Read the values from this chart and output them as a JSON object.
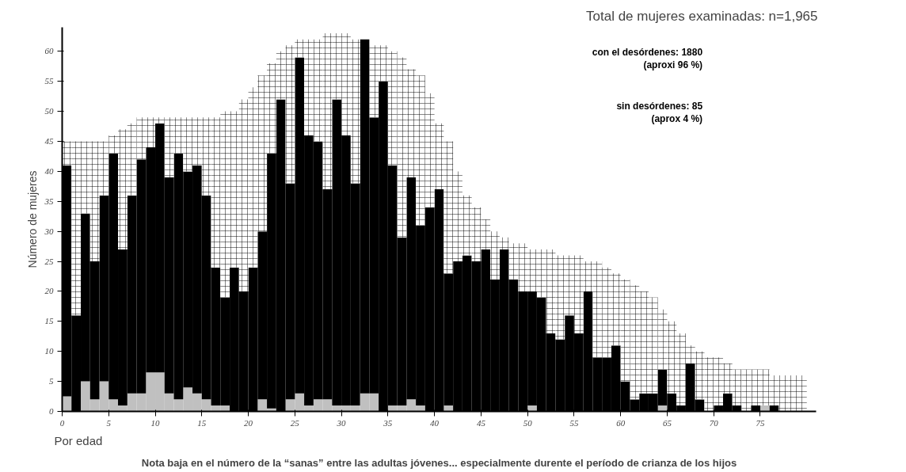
{
  "chart_data": {
    "type": "bar",
    "stacked": true,
    "title": "Total de mujeres examinadas: n=1,965",
    "xlabel": "Por edad",
    "ylabel": "Número de mujeres",
    "x": [
      0.5,
      1.5,
      2.5,
      3.5,
      4.5,
      5.5,
      6.5,
      7.5,
      8.5,
      9.5,
      10.5,
      11.5,
      12.5,
      13.5,
      14.5,
      15.5,
      16.5,
      17.5,
      18.5,
      19.5,
      20.5,
      21.5,
      22.5,
      23.5,
      24.5,
      25.5,
      26.5,
      27.5,
      28.5,
      29.5,
      30.5,
      31.5,
      32.5,
      33.5,
      34.5,
      35.5,
      36.5,
      37.5,
      38.5,
      39.5,
      40.5,
      41.5,
      42.5,
      43.5,
      44.5,
      45.5,
      46.5,
      47.5,
      48.5,
      49.5,
      50.5,
      51.5,
      52.5,
      53.5,
      54.5,
      55.5,
      56.5,
      57.5,
      58.5,
      59.5,
      60.5,
      61.5,
      62.5,
      63.5,
      64.5,
      65.5,
      66.5,
      67.5,
      68.5,
      69.5,
      70.5,
      71.5,
      72.5,
      73.5,
      74.5,
      75.5,
      76.5,
      77.5,
      78.5,
      79.5
    ],
    "xlim": [
      0,
      81
    ],
    "xticks": [
      0,
      5,
      10,
      15,
      20,
      25,
      30,
      35,
      40,
      45,
      50,
      55,
      60,
      65,
      70,
      75
    ],
    "ylim": [
      0,
      64
    ],
    "yticks": [
      0,
      5,
      10,
      15,
      20,
      25,
      30,
      35,
      40,
      45,
      50,
      55,
      60
    ],
    "series": [
      {
        "color": "#c0c0c0",
        "values": [
          2.5,
          0,
          5,
          2,
          5,
          2,
          1,
          3,
          3,
          6.5,
          6.5,
          3,
          2,
          4,
          3,
          2,
          1,
          1,
          0,
          0,
          0,
          2,
          0.5,
          0,
          2,
          3,
          1,
          2,
          2,
          1,
          1,
          1,
          3,
          3,
          0,
          1,
          1,
          2,
          1,
          0,
          0,
          1,
          0,
          0,
          0,
          0,
          0,
          0,
          0,
          0,
          1,
          0,
          0,
          0,
          0,
          0,
          0,
          0,
          0,
          0,
          0,
          0,
          0,
          0,
          1,
          0,
          0,
          0,
          0,
          0,
          0,
          0,
          0,
          0,
          0,
          1,
          0,
          0,
          0,
          0
        ]
      },
      {
        "color": "#000000",
        "values": [
          38.5,
          16,
          28,
          23,
          31,
          41,
          26,
          33,
          39,
          37.5,
          41.5,
          36,
          41,
          36,
          38,
          34,
          23,
          18,
          24,
          20,
          24,
          28,
          42.5,
          52,
          36,
          56,
          45,
          43,
          35,
          51,
          45,
          37,
          59,
          46,
          55,
          40,
          28,
          37,
          30,
          34,
          37,
          22,
          25,
          26,
          25,
          27,
          22,
          27,
          22,
          20,
          19,
          19,
          13,
          12,
          16,
          13,
          20,
          9,
          9,
          11,
          5,
          2,
          3,
          3,
          6,
          3,
          1,
          8,
          2,
          0,
          1,
          3,
          1,
          0,
          1,
          0,
          1,
          0,
          0,
          0
        ]
      },
      {
        "color": "#ffffff",
        "values": [
          4,
          29,
          12,
          20,
          9,
          3,
          20,
          12,
          7,
          5,
          1,
          10,
          6,
          9,
          8,
          13,
          25,
          31,
          26,
          32,
          30,
          26,
          15,
          8,
          23,
          3,
          16,
          17,
          26,
          11,
          17,
          24,
          0,
          12,
          6,
          19,
          30,
          18,
          25,
          19,
          11,
          22,
          15,
          10,
          9,
          5,
          8,
          2,
          6,
          8,
          7,
          8,
          14,
          14,
          10,
          13,
          5,
          16,
          15,
          12,
          17,
          19,
          17,
          16,
          10,
          12,
          12,
          3,
          8,
          9,
          8,
          5,
          6,
          7,
          6,
          6,
          5,
          6,
          6,
          6
        ]
      }
    ],
    "annotations": [
      "con el desórdenes: 1880\n(aproxi 96 %)",
      "sin desórdenes: 85\n(aprox 4 %)",
      "Nota baja en el número de la “sanas” entre las adultas jóvenes... especialmente durente el período de crianza de los hijos"
    ]
  }
}
